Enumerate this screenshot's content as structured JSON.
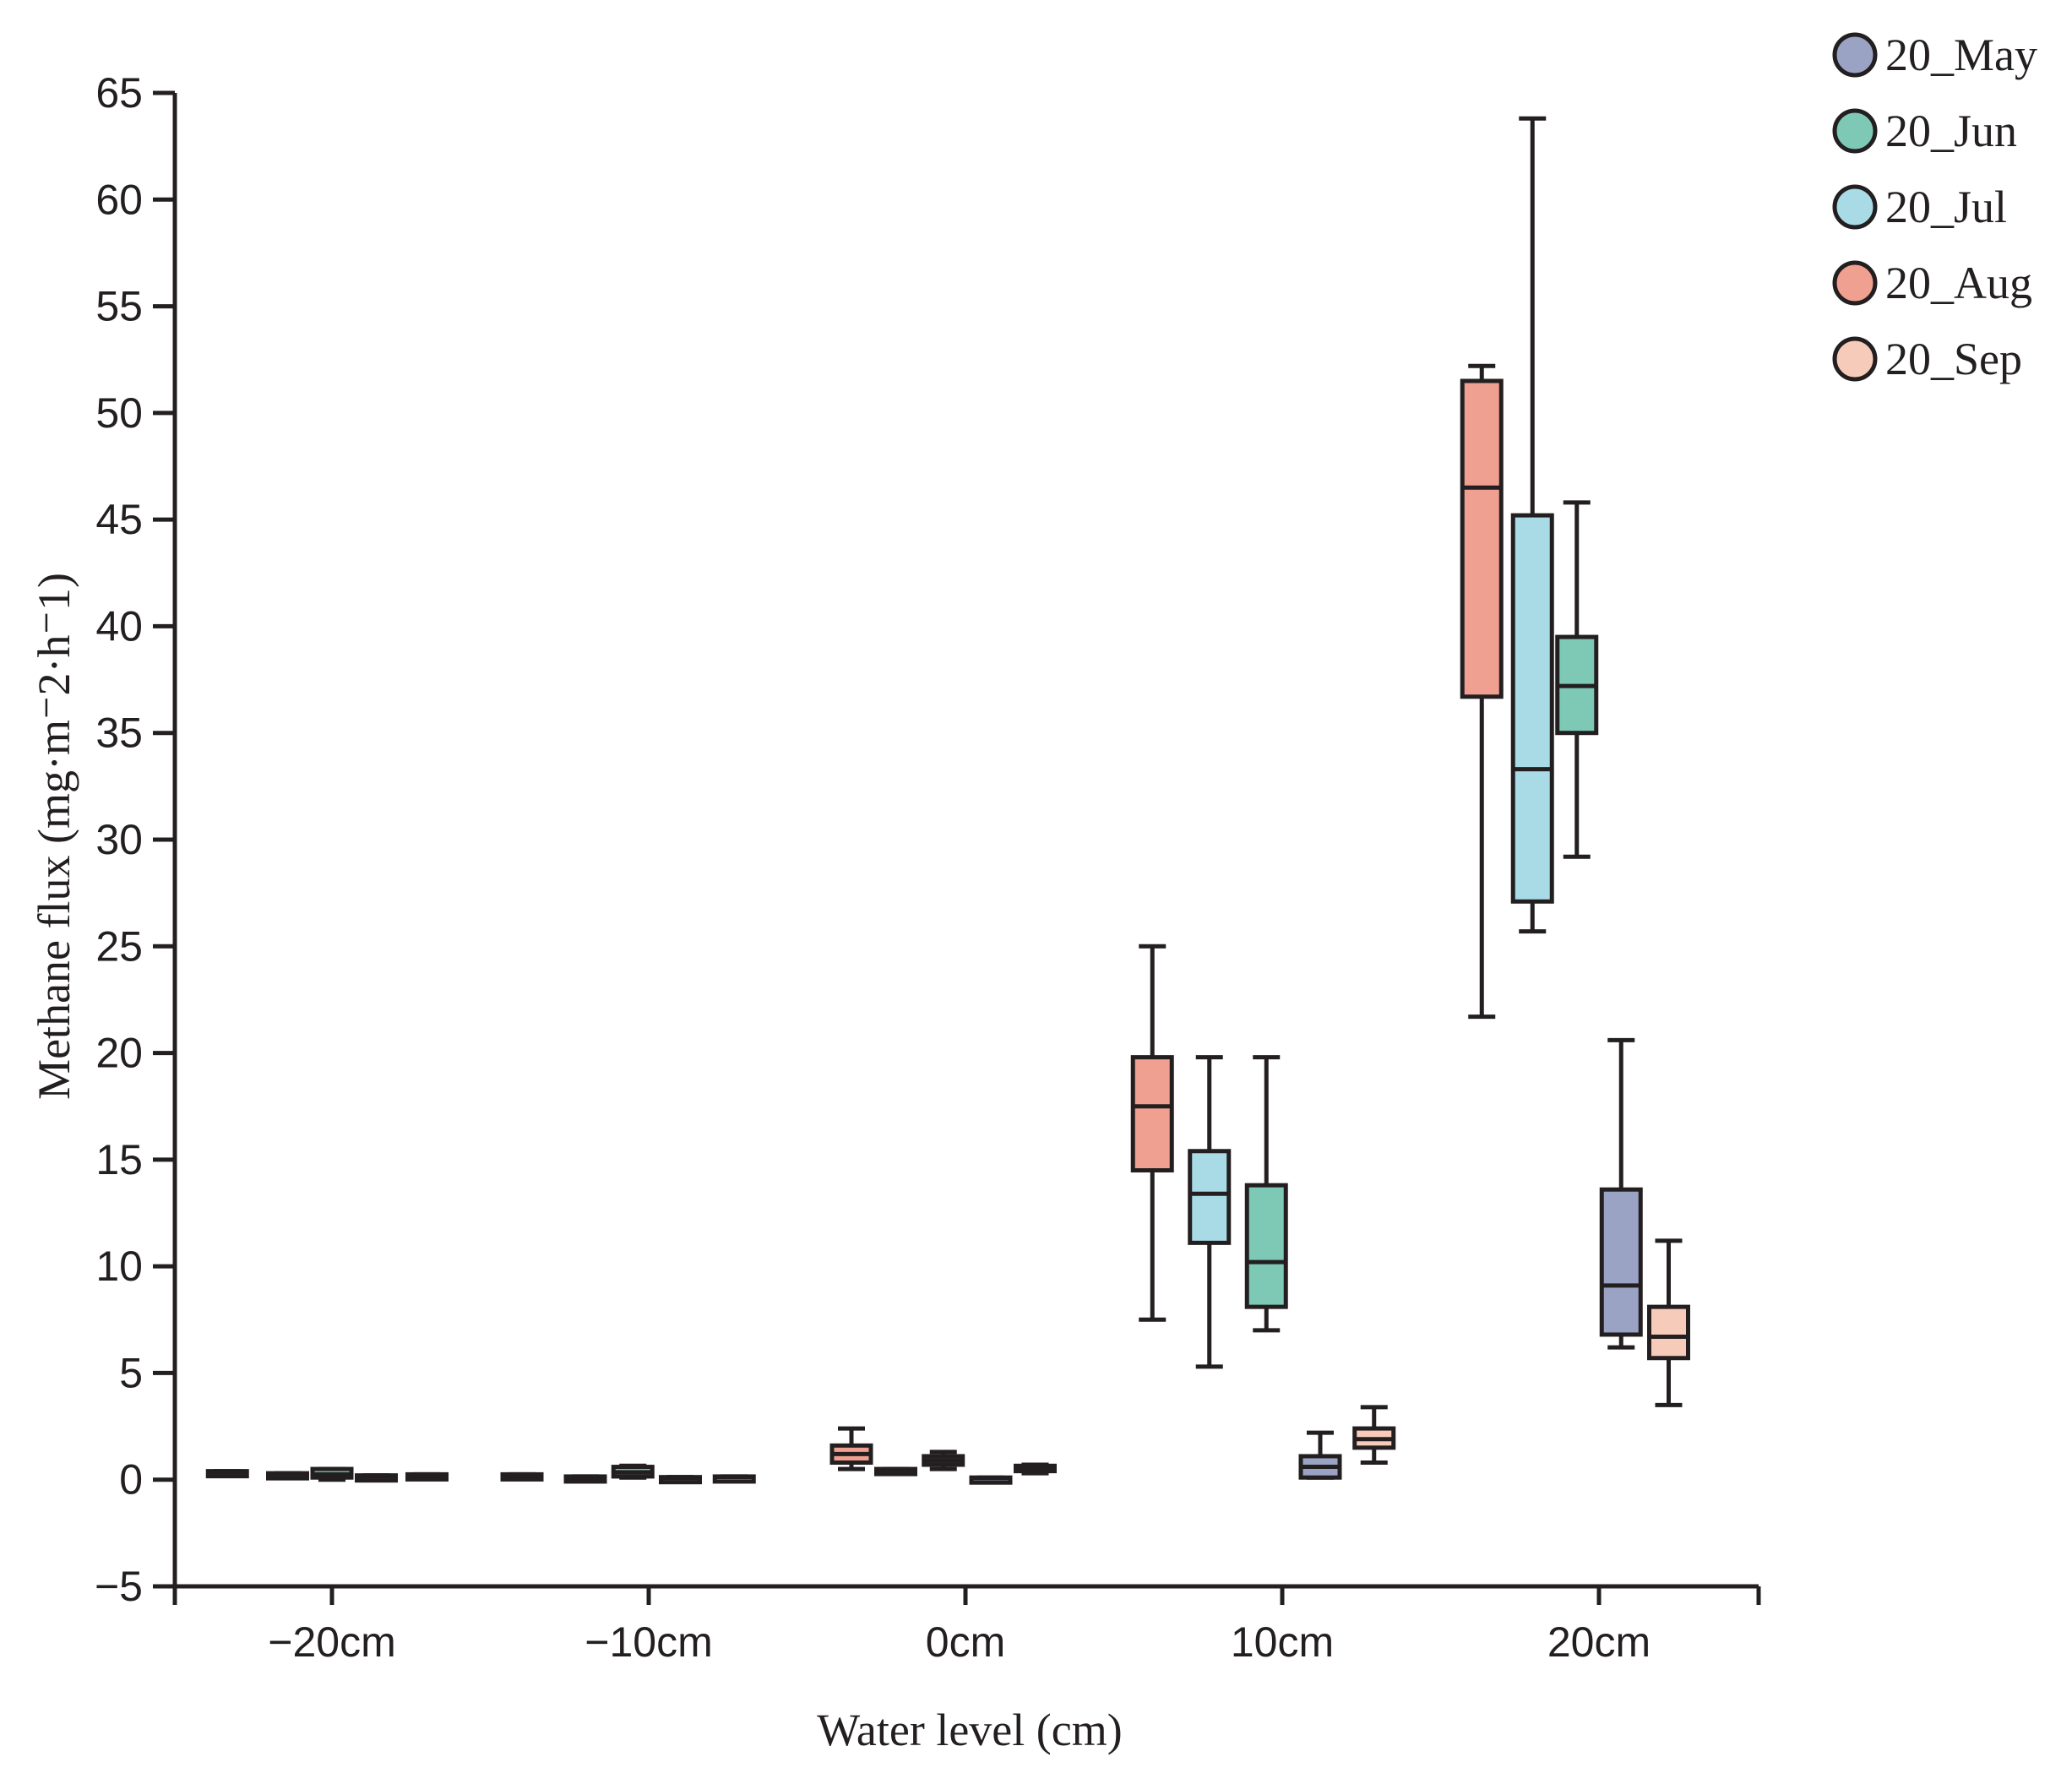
{
  "chart_data": {
    "type": "box",
    "xlabel": "Water level (cm)",
    "ylabel": "Methane flux (mg·m⁻2·h⁻1)",
    "ylim": [
      -5,
      65
    ],
    "yticks": [
      -5,
      0,
      5,
      10,
      15,
      20,
      25,
      30,
      35,
      40,
      45,
      50,
      55,
      60,
      65
    ],
    "categories": [
      "−20cm",
      "−10cm",
      "0cm",
      "10cm",
      "20cm"
    ],
    "legend_position": "top-right",
    "series": [
      {
        "name": "20_May",
        "color": "#9aa3c4"
      },
      {
        "name": "20_Jun",
        "color": "#7dc9b5"
      },
      {
        "name": "20_Jul",
        "color": "#a8dbe6"
      },
      {
        "name": "20_Aug",
        "color": "#f0a090"
      },
      {
        "name": "20_Sep",
        "color": "#f7cbba"
      }
    ],
    "boxes": [
      {
        "category": 0,
        "series": "20_Aug",
        "offset": -0.33,
        "min": 0.3,
        "q1": 0.3,
        "median": 0.35,
        "q3": 0.4,
        "max": 0.4
      },
      {
        "category": 0,
        "series": "20_Jul",
        "offset": -0.14,
        "min": 0.2,
        "q1": 0.2,
        "median": 0.25,
        "q3": 0.3,
        "max": 0.3
      },
      {
        "category": 0,
        "series": "20_Jun",
        "offset": 0.0,
        "min": 0.0,
        "q1": 0.1,
        "median": 0.25,
        "q3": 0.5,
        "max": 0.5
      },
      {
        "category": 0,
        "series": "20_May",
        "offset": 0.14,
        "min": 0.1,
        "q1": 0.1,
        "median": 0.15,
        "q3": 0.2,
        "max": 0.2
      },
      {
        "category": 0,
        "series": "20_Sep",
        "offset": 0.3,
        "min": 0.15,
        "q1": 0.15,
        "median": 0.2,
        "q3": 0.25,
        "max": 0.25
      },
      {
        "category": 1,
        "series": "20_Aug",
        "offset": -0.4,
        "min": 0.15,
        "q1": 0.15,
        "median": 0.2,
        "q3": 0.25,
        "max": 0.25
      },
      {
        "category": 1,
        "series": "20_Jul",
        "offset": -0.2,
        "min": 0.05,
        "q1": 0.05,
        "median": 0.1,
        "q3": 0.15,
        "max": 0.15
      },
      {
        "category": 1,
        "series": "20_Jun",
        "offset": -0.05,
        "min": 0.1,
        "q1": 0.15,
        "median": 0.35,
        "q3": 0.6,
        "max": 0.65
      },
      {
        "category": 1,
        "series": "20_May",
        "offset": 0.1,
        "min": 0.05,
        "q1": 0.05,
        "median": 0.08,
        "q3": 0.12,
        "max": 0.12
      },
      {
        "category": 1,
        "series": "20_Sep",
        "offset": 0.27,
        "min": 0.1,
        "q1": 0.1,
        "median": 0.12,
        "q3": 0.15,
        "max": 0.15
      },
      {
        "category": 2,
        "series": "20_Aug",
        "offset": -0.36,
        "min": 0.5,
        "q1": 0.8,
        "median": 1.2,
        "q3": 1.6,
        "max": 2.4
      },
      {
        "category": 2,
        "series": "20_Jul",
        "offset": -0.22,
        "min": 0.4,
        "q1": 0.4,
        "median": 0.45,
        "q3": 0.5,
        "max": 0.5
      },
      {
        "category": 2,
        "series": "20_Jun",
        "offset": -0.07,
        "min": 0.5,
        "q1": 0.7,
        "median": 0.9,
        "q3": 1.1,
        "max": 1.3
      },
      {
        "category": 2,
        "series": "20_May",
        "offset": 0.08,
        "min": 0.05,
        "q1": 0.05,
        "median": 0.08,
        "q3": 0.1,
        "max": 0.1
      },
      {
        "category": 2,
        "series": "20_Sep",
        "offset": 0.22,
        "min": 0.3,
        "q1": 0.4,
        "median": 0.5,
        "q3": 0.65,
        "max": 0.7
      },
      {
        "category": 3,
        "series": "20_Aug",
        "offset": -0.41,
        "min": 7.5,
        "q1": 14.5,
        "median": 17.5,
        "q3": 19.8,
        "max": 25.0
      },
      {
        "category": 3,
        "series": "20_Jul",
        "offset": -0.23,
        "min": 5.3,
        "q1": 11.1,
        "median": 13.4,
        "q3": 15.4,
        "max": 19.8
      },
      {
        "category": 3,
        "series": "20_Jun",
        "offset": -0.05,
        "min": 7.0,
        "q1": 8.1,
        "median": 10.2,
        "q3": 13.8,
        "max": 19.8
      },
      {
        "category": 3,
        "series": "20_May",
        "offset": 0.12,
        "min": 0.1,
        "q1": 0.1,
        "median": 0.6,
        "q3": 1.1,
        "max": 2.2
      },
      {
        "category": 3,
        "series": "20_Sep",
        "offset": 0.29,
        "min": 0.8,
        "q1": 1.5,
        "median": 1.9,
        "q3": 2.4,
        "max": 3.4
      },
      {
        "category": 4,
        "series": "20_Aug",
        "offset": -0.37,
        "min": 21.7,
        "q1": 36.7,
        "median": 46.5,
        "q3": 51.5,
        "max": 52.2
      },
      {
        "category": 4,
        "series": "20_Jul",
        "offset": -0.21,
        "min": 25.7,
        "q1": 27.1,
        "median": 33.3,
        "q3": 45.2,
        "max": 63.8
      },
      {
        "category": 4,
        "series": "20_Jun",
        "offset": -0.07,
        "min": 29.2,
        "q1": 35.0,
        "median": 37.2,
        "q3": 39.5,
        "max": 45.8
      },
      {
        "category": 4,
        "series": "20_May",
        "offset": 0.07,
        "min": 6.2,
        "q1": 6.8,
        "median": 9.1,
        "q3": 13.6,
        "max": 20.6
      },
      {
        "category": 4,
        "series": "20_Sep",
        "offset": 0.22,
        "min": 3.5,
        "q1": 5.7,
        "median": 6.7,
        "q3": 8.1,
        "max": 11.2
      }
    ]
  }
}
